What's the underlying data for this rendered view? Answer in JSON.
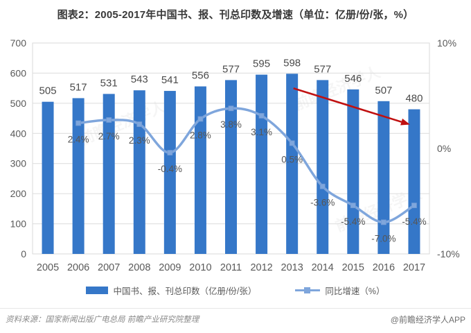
{
  "title": "图表2：2005-2017年中国书、报、刊总印数及增速（单位：亿册/份/张，%）",
  "chart_data": {
    "type": "bar",
    "categories": [
      "2005",
      "2006",
      "2007",
      "2008",
      "2009",
      "2010",
      "2011",
      "2012",
      "2013",
      "2014",
      "2015",
      "2016",
      "2017"
    ],
    "series": [
      {
        "name": "中国书、报、刊总印数（亿册/份/张）",
        "type": "bar",
        "axis": "left",
        "color": "#3577c8",
        "values": [
          505,
          517,
          531,
          543,
          541,
          556,
          577,
          595,
          598,
          577,
          546,
          507,
          480
        ],
        "value_labels": [
          "505",
          "517",
          "531",
          "543",
          "541",
          "556",
          "577",
          "595",
          "598",
          "577",
          "546",
          "507",
          "480"
        ]
      },
      {
        "name": "同比增速（%）",
        "type": "line",
        "axis": "right",
        "color": "#7fa6dc",
        "values": [
          null,
          2.4,
          2.7,
          2.3,
          -0.4,
          2.8,
          3.8,
          3.1,
          0.5,
          -3.6,
          -5.4,
          -7.0,
          -5.4
        ],
        "value_labels": [
          null,
          "2.4%",
          "2.7%",
          "2.3%",
          "-0.4%",
          "2.8%",
          "3.8%",
          "3.1%",
          "0.5%",
          "-3.6%",
          "-5.4%",
          "-7.0%",
          "-5.4%"
        ]
      }
    ],
    "left_axis": {
      "min": 0,
      "max": 700,
      "step": 100,
      "tick_labels": [
        "0",
        "100",
        "200",
        "300",
        "400",
        "500",
        "600",
        "700"
      ]
    },
    "right_axis": {
      "min": -10,
      "max": 10,
      "ticks": [
        {
          "label": "10%",
          "value": 10
        },
        {
          "label": "0%",
          "value": 0
        },
        {
          "label": "-10%",
          "value": -10
        }
      ]
    },
    "grid": true,
    "legend_position": "bottom",
    "annotation": {
      "type": "arrow",
      "from_category": "2013",
      "to_category": "2017",
      "color": "#c01010"
    }
  },
  "legend": {
    "items": [
      {
        "label": "中国书、报、刊总印数（亿册/份/张）",
        "swatch": "bar"
      },
      {
        "label": "同比增速（%）",
        "swatch": "line"
      }
    ]
  },
  "footer": {
    "source": "资料来源：国家新闻出版广电总局 前瞻产业研究院整理",
    "credit": "@前瞻经济学人APP"
  },
  "watermark": {
    "text": "前瞻经济学人"
  },
  "colors": {
    "bar": "#3577c8",
    "line": "#7fa6dc",
    "arrow": "#c01010",
    "grid": "#dcdcdc",
    "axis_text": "#595959",
    "bar_label_text": "#4a4a4a"
  }
}
